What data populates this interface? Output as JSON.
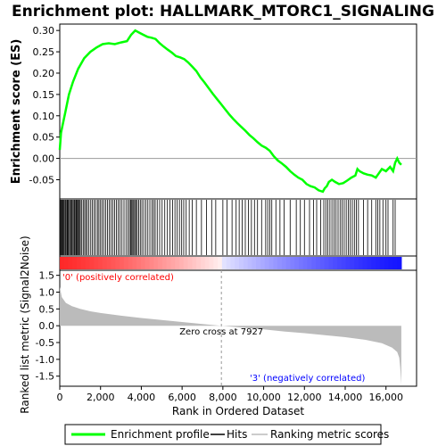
{
  "chart_data": {
    "type": "line",
    "title": "Enrichment plot: HALLMARK_MTORC1_SIGNALING",
    "xlabel": "Rank in Ordered Dataset",
    "xlim": [
      0,
      17500
    ],
    "x_ticks": [
      "0",
      "2,000",
      "4,000",
      "6,000",
      "8,000",
      "10,000",
      "12,000",
      "14,000",
      "16,000"
    ],
    "x_tick_values": [
      0,
      2000,
      4000,
      6000,
      8000,
      10000,
      12000,
      14000,
      16000
    ],
    "top_panel": {
      "ylabel": "Enrichment score (ES)",
      "ylim": [
        -0.095,
        0.315
      ],
      "y_ticks": [
        "0.30",
        "0.25",
        "0.20",
        "0.15",
        "0.10",
        "0.05",
        "0.00",
        "-0.05"
      ],
      "y_tick_values": [
        0.3,
        0.25,
        0.2,
        0.15,
        0.1,
        0.05,
        0.0,
        -0.05
      ],
      "series": [
        {
          "name": "Enrichment profile",
          "color": "#00ff00",
          "x": [
            0,
            60,
            150,
            280,
            450,
            650,
            900,
            1200,
            1500,
            1800,
            2100,
            2400,
            2700,
            3000,
            3300,
            3500,
            3700,
            3900,
            4100,
            4300,
            4500,
            4700,
            4900,
            5100,
            5300,
            5500,
            5700,
            5900,
            6100,
            6300,
            6500,
            6700,
            6900,
            7100,
            7300,
            7500,
            7700,
            7900,
            8100,
            8300,
            8500,
            8700,
            8900,
            9100,
            9300,
            9500,
            9700,
            9900,
            10100,
            10300,
            10500,
            10700,
            10900,
            11100,
            11300,
            11500,
            11700,
            11900,
            12100,
            12300,
            12500,
            12700,
            12900,
            13000,
            13100,
            13200,
            13350,
            13500,
            13700,
            13900,
            14100,
            14300,
            14500,
            14600,
            14700,
            14900,
            15100,
            15300,
            15500,
            15650,
            15800,
            16000,
            16200,
            16350,
            16450,
            16550,
            16650,
            16750
          ],
          "y": [
            0.02,
            0.06,
            0.08,
            0.11,
            0.15,
            0.18,
            0.21,
            0.235,
            0.25,
            0.26,
            0.268,
            0.27,
            0.268,
            0.272,
            0.275,
            0.29,
            0.3,
            0.295,
            0.29,
            0.285,
            0.283,
            0.28,
            0.27,
            0.262,
            0.255,
            0.248,
            0.24,
            0.237,
            0.233,
            0.225,
            0.215,
            0.205,
            0.19,
            0.178,
            0.165,
            0.152,
            0.14,
            0.128,
            0.116,
            0.104,
            0.093,
            0.083,
            0.074,
            0.065,
            0.055,
            0.047,
            0.038,
            0.03,
            0.025,
            0.018,
            0.005,
            -0.005,
            -0.012,
            -0.02,
            -0.03,
            -0.038,
            -0.045,
            -0.05,
            -0.06,
            -0.065,
            -0.068,
            -0.075,
            -0.078,
            -0.07,
            -0.065,
            -0.055,
            -0.05,
            -0.055,
            -0.06,
            -0.058,
            -0.052,
            -0.045,
            -0.04,
            -0.025,
            -0.03,
            -0.035,
            -0.038,
            -0.04,
            -0.045,
            -0.035,
            -0.025,
            -0.03,
            -0.02,
            -0.03,
            -0.01,
            0.0,
            -0.01,
            -0.015
          ]
        }
      ]
    },
    "hits_panel": {
      "series_name": "Hits",
      "hit_ranks": [
        20,
        50,
        90,
        130,
        170,
        210,
        260,
        300,
        350,
        380,
        420,
        470,
        520,
        560,
        600,
        650,
        700,
        740,
        790,
        830,
        870,
        920,
        960,
        1010,
        1080,
        1150,
        1220,
        1280,
        1350,
        1430,
        1520,
        1600,
        1680,
        1760,
        1850,
        1920,
        2000,
        2080,
        2160,
        2250,
        2340,
        2430,
        2520,
        2600,
        2690,
        2780,
        2870,
        2950,
        3050,
        3150,
        3250,
        3350,
        3420,
        3480,
        3530,
        3580,
        3630,
        3680,
        3740,
        3800,
        3870,
        3950,
        4030,
        4120,
        4220,
        4320,
        4420,
        4520,
        4600,
        4680,
        4780,
        4900,
        5020,
        5150,
        5280,
        5400,
        5530,
        5650,
        5760,
        5870,
        5980,
        6080,
        6200,
        6350,
        6500,
        6700,
        6950,
        7200,
        7450,
        7650,
        8000,
        8200,
        8450,
        8650,
        8800,
        8950,
        9100,
        9250,
        9400,
        9550,
        9700,
        9900,
        10100,
        10200,
        10300,
        10400,
        10600,
        10800,
        11000,
        11300,
        11600,
        11800,
        12000,
        12250,
        12450,
        12600,
        12800,
        12950,
        13050,
        13150,
        13250,
        13350,
        13450,
        13550,
        13650,
        13750,
        13850,
        13950,
        14050,
        14150,
        14250,
        14350,
        14450,
        14550,
        14650,
        14900,
        15100,
        15300,
        15500,
        15600,
        15700,
        15850,
        16000,
        16100,
        16350,
        16450
      ]
    },
    "metric_panel": {
      "ylabel": "Ranked list metric (Signal2Noise)",
      "ylim": [
        -1.8,
        1.65
      ],
      "y_ticks": [
        "1.5",
        "1.0",
        "0.5",
        "0.0",
        "-0.5",
        "-1.0",
        "-1.5"
      ],
      "y_tick_values": [
        1.5,
        1.0,
        0.5,
        0.0,
        -0.5,
        -1.0,
        -1.5
      ],
      "series_name": "Ranking metric scores",
      "x": [
        0,
        100,
        300,
        600,
        1000,
        1500,
        2000,
        3000,
        4000,
        5000,
        6000,
        7000,
        7927,
        9000,
        10000,
        11000,
        12000,
        13000,
        14000,
        15000,
        15800,
        16300,
        16550,
        16650,
        16700,
        16750
      ],
      "y": [
        1.15,
        0.85,
        0.68,
        0.58,
        0.5,
        0.43,
        0.38,
        0.3,
        0.23,
        0.17,
        0.11,
        0.05,
        0.0,
        -0.06,
        -0.11,
        -0.17,
        -0.22,
        -0.28,
        -0.34,
        -0.42,
        -0.52,
        -0.65,
        -0.78,
        -0.95,
        -1.25,
        -1.75
      ],
      "zero_cross_rank": 7927,
      "zero_cross_label": "Zero cross at 7927",
      "pos_label": "'0' (positively correlated)",
      "neg_label": "'3' (negatively correlated)",
      "pos_color": "#ff0000",
      "neg_color": "#0000ff"
    },
    "legend": {
      "placement": "bottom",
      "items": [
        {
          "label": "Enrichment profile",
          "color": "#00ff00"
        },
        {
          "label": "Hits",
          "color": "#000000"
        },
        {
          "label": "Ranking metric scores",
          "color": "#bbbbbb"
        }
      ]
    }
  }
}
